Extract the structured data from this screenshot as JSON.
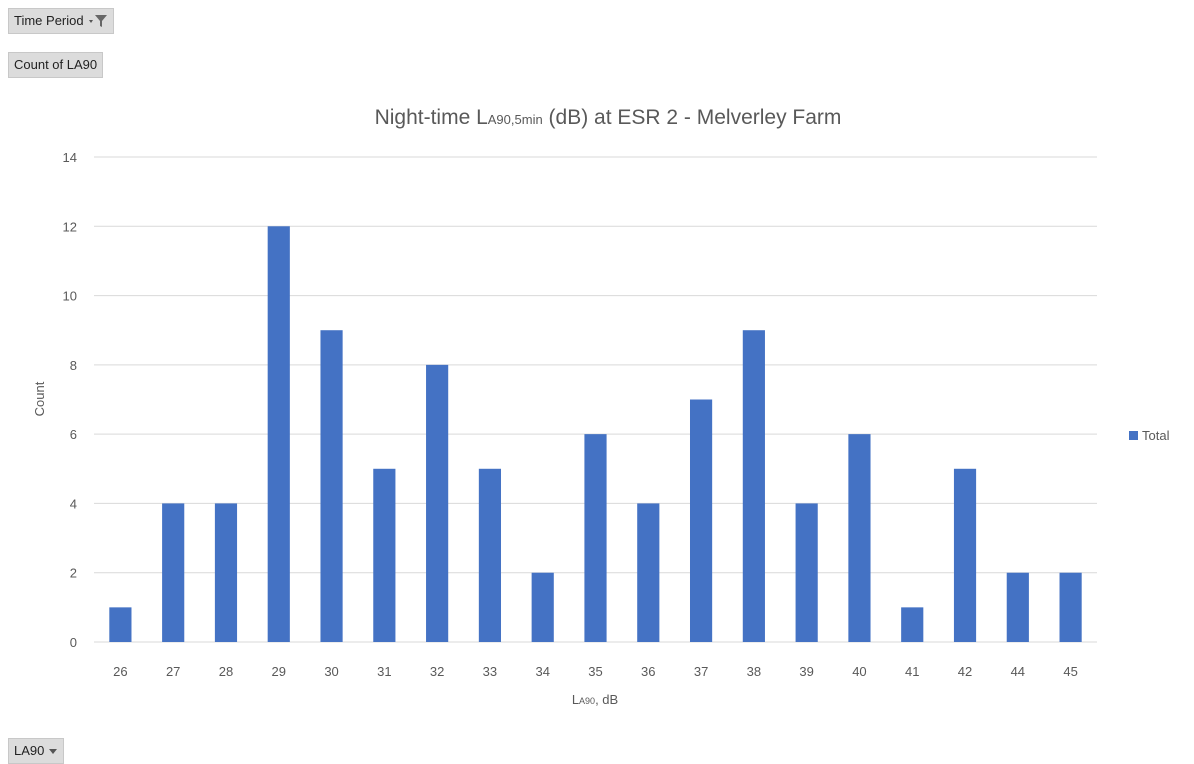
{
  "filters": {
    "time_period_label": "Time Period",
    "count_label": "Count of LA90",
    "row_field_label": "LA90"
  },
  "icons": {
    "filter": "filter-icon",
    "dropdown": "dropdown-arrow-icon"
  },
  "colors": {
    "bar": "#4472c4",
    "grid": "#d9d9d9",
    "text": "#595959"
  },
  "chart_data": {
    "type": "bar",
    "title_main": "Night-time L",
    "title_sub": "A90,5min",
    "title_rest": " (dB) at ESR 2 - Melverley Farm",
    "xlabel_main": "L",
    "xlabel_sub": "A90",
    "xlabel_rest": ", dB",
    "ylabel": "Count",
    "ylim": [
      0,
      14
    ],
    "yticks": [
      0,
      2,
      4,
      6,
      8,
      10,
      12,
      14
    ],
    "grid": true,
    "legend_position": "right",
    "categories": [
      "26",
      "27",
      "28",
      "29",
      "30",
      "31",
      "32",
      "33",
      "34",
      "35",
      "36",
      "37",
      "38",
      "39",
      "40",
      "41",
      "42",
      "44",
      "45"
    ],
    "series": [
      {
        "name": "Total",
        "values": [
          1,
          4,
          4,
          12,
          9,
          5,
          8,
          5,
          2,
          6,
          4,
          7,
          9,
          4,
          6,
          1,
          5,
          2,
          2
        ]
      }
    ]
  }
}
